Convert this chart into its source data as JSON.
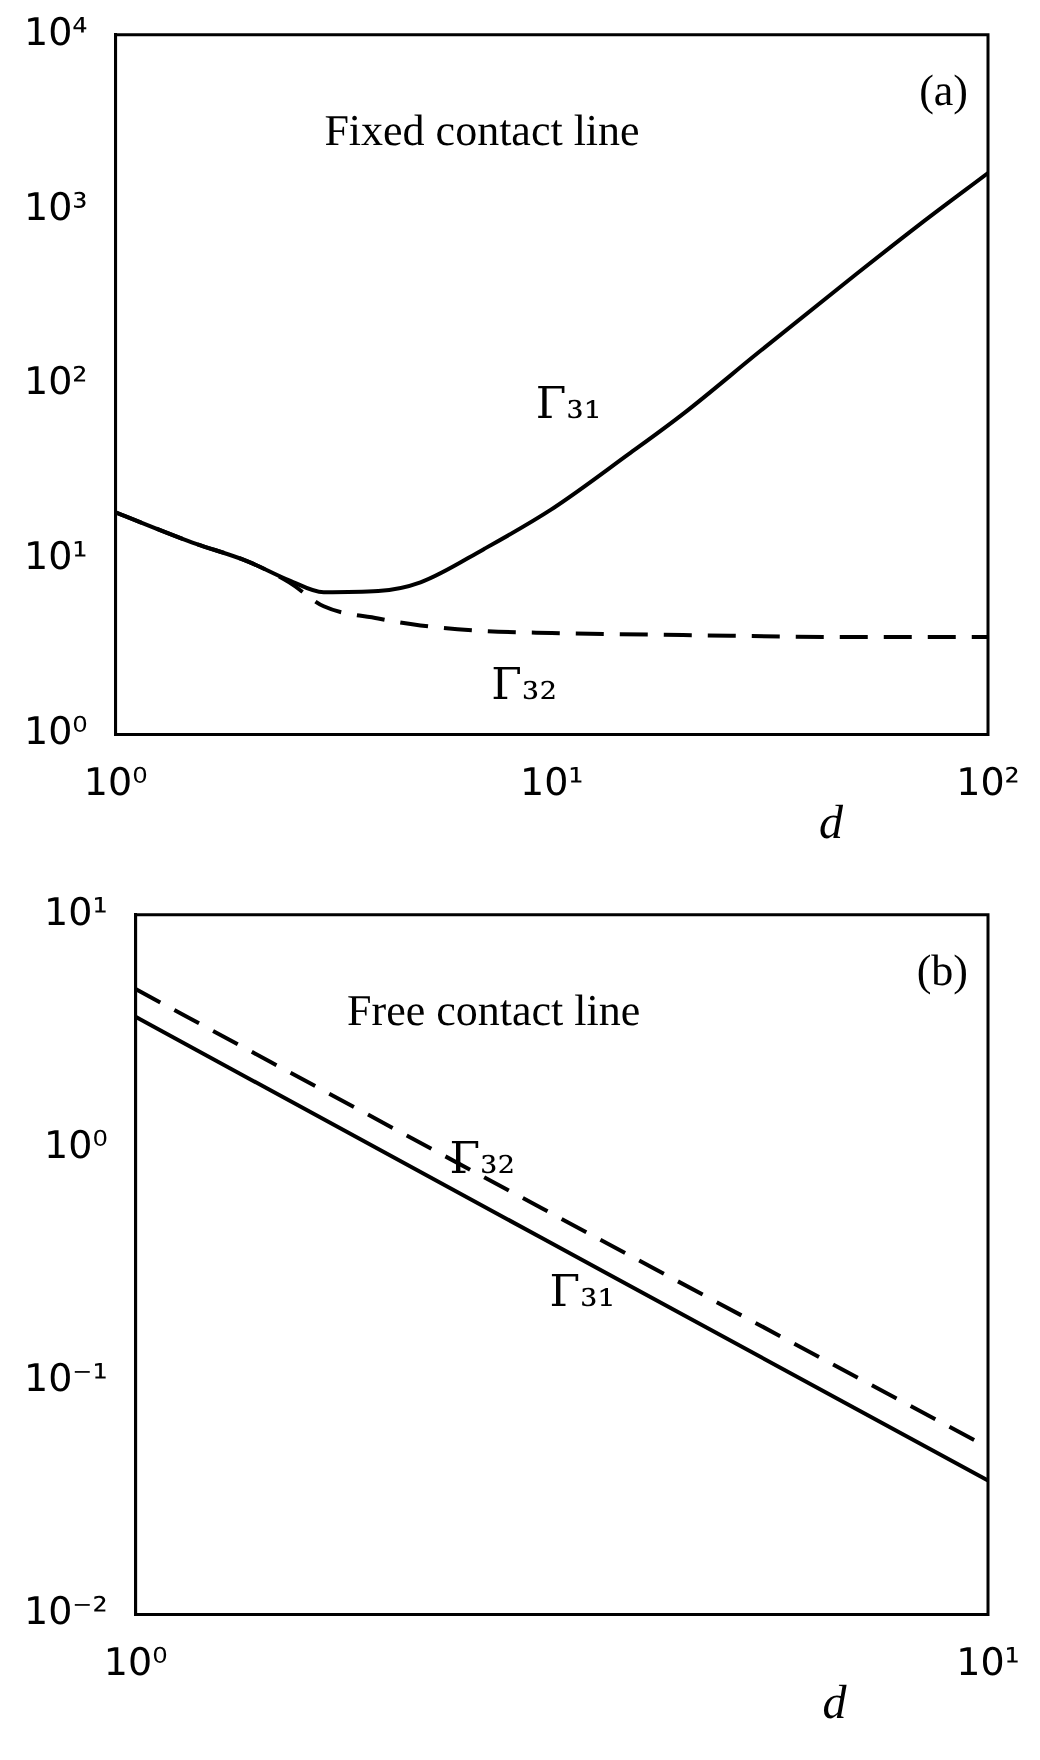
{
  "chart_data": [
    {
      "type": "line",
      "xlabel": "d",
      "log": "xy",
      "xlim": [
        1,
        100
      ],
      "ylim": [
        1,
        10000
      ],
      "xticks": [
        {
          "value": 1,
          "label": "10⁰"
        },
        {
          "value": 10,
          "label": "10¹"
        },
        {
          "value": 100,
          "label": "10²"
        }
      ],
      "yticks": [
        {
          "value": 1,
          "label": "10⁰"
        },
        {
          "value": 10,
          "label": "10¹"
        },
        {
          "value": 100,
          "label": "10²"
        },
        {
          "value": 1000,
          "label": "10³"
        },
        {
          "value": 10000,
          "label": "10⁴"
        }
      ],
      "grid": false,
      "legend": false,
      "marker": "none",
      "annotations": [
        "Fixed contact line",
        "(a)"
      ],
      "series": [
        {
          "name": "Γ₃₁",
          "color": "#000000",
          "line_style": "solid",
          "x": [
            1,
            1.5,
            2,
            2.5,
            3,
            4,
            5,
            7,
            10,
            15,
            20,
            30,
            50,
            70,
            100
          ],
          "values": [
            18.6,
            12.5,
            9.8,
            7.6,
            6.5,
            6.6,
            7.4,
            11.5,
            19.4,
            40,
            68,
            155,
            430,
            830,
            1620
          ]
        },
        {
          "name": "Γ₃₂",
          "color": "#000000",
          "line_style": "dashed",
          "x": [
            1,
            1.5,
            2,
            2.5,
            3,
            4,
            5,
            7,
            10,
            20,
            50,
            100
          ],
          "values": [
            18.6,
            12.5,
            9.8,
            7.4,
            5.4,
            4.6,
            4.2,
            3.9,
            3.8,
            3.7,
            3.6,
            3.6
          ]
        }
      ]
    },
    {
      "type": "line",
      "xlabel": "d",
      "log": "xy",
      "xlim": [
        1,
        10
      ],
      "ylim": [
        0.01,
        10
      ],
      "xticks": [
        {
          "value": 1,
          "label": "10⁰"
        },
        {
          "value": 10,
          "label": "10¹"
        }
      ],
      "yticks": [
        {
          "value": 0.01,
          "label": "10⁻²"
        },
        {
          "value": 0.1,
          "label": "10⁻¹"
        },
        {
          "value": 1,
          "label": "10⁰"
        },
        {
          "value": 10,
          "label": "10¹"
        }
      ],
      "grid": false,
      "legend": false,
      "marker": "none",
      "annotations": [
        "Free contact line",
        "(b)"
      ],
      "series": [
        {
          "name": "Γ₃₁",
          "color": "#000000",
          "line_style": "solid",
          "x": [
            1,
            3,
            10
          ],
          "values": [
            3.65,
            0.41,
            0.0375
          ]
        },
        {
          "name": "Γ₃₂",
          "color": "#000000",
          "line_style": "dashed",
          "x": [
            1,
            3,
            10
          ],
          "values": [
            4.8,
            0.55,
            0.052
          ]
        }
      ]
    }
  ]
}
